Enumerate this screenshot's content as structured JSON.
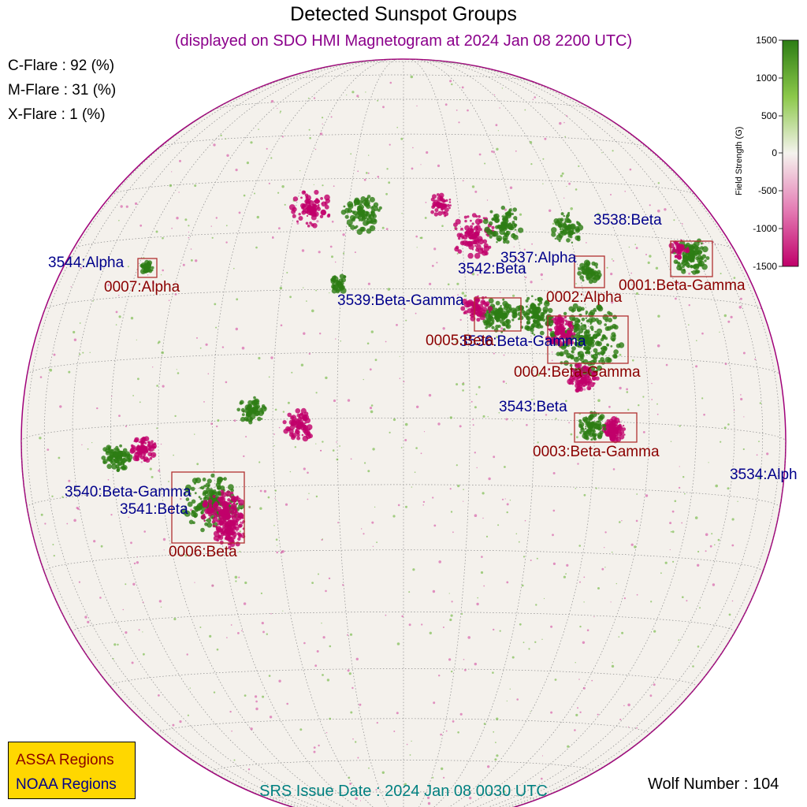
{
  "title": "Detected Sunspot Groups",
  "subtitle": "(displayed on SDO HMI Magnetogram at 2024 Jan 08 2200 UTC)",
  "flares": {
    "c": "C-Flare : 92 (%)",
    "m": "M-Flare : 31 (%)",
    "x": "X-Flare :  1 (%)"
  },
  "colorbar": {
    "title": "Field Strength (G)",
    "ticks": [
      "1500",
      "1000",
      "500",
      "0",
      "-500",
      "-1000",
      "-1500"
    ],
    "colors": {
      "positive": "#2d7d14",
      "zero": "#f5f3ee",
      "negative": "#c0006a"
    }
  },
  "noaa_regions": {
    "r3538": "3538:Beta",
    "r3537": "3537:Alpha",
    "r3542": "3542:Beta",
    "r3539": "3539:Beta-Gamma",
    "r3536": "3536:Beta-Gamma",
    "r3544": "3544:Alpha",
    "r3543": "3543:Beta",
    "r3540": "3540:Beta-Gamma",
    "r3541": "3541:Beta",
    "r3534": "3534:Alph"
  },
  "assa_regions": {
    "a0001": "0001:Beta-Gamma",
    "a0002": "0002:Alpha",
    "a0005": "0005:Beta",
    "a0004": "0004:Beta-Gamma",
    "a0003": "0003:Beta-Gamma",
    "a0006": "0006:Beta",
    "a0007": "0007:Alpha"
  },
  "legend": {
    "assa": "ASSA Regions",
    "noaa": "NOAA Regions"
  },
  "srs": "SRS Issue Date : 2024 Jan 08 0030 UTC",
  "wolf": "Wolf Number : 104",
  "colors": {
    "assa": "#8b0000",
    "noaa": "#00008b",
    "box": "#b03030"
  }
}
